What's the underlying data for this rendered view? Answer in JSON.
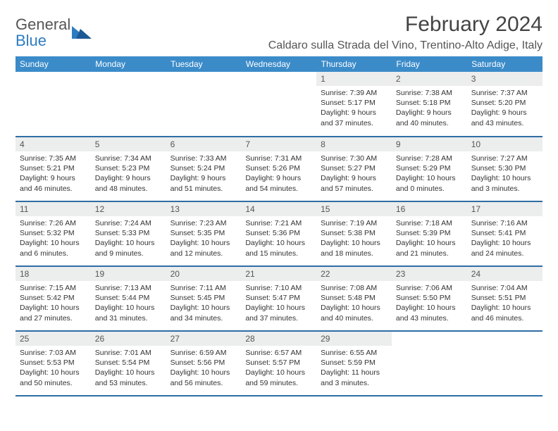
{
  "logo": {
    "text_general": "General",
    "text_blue": "Blue"
  },
  "title": "February 2024",
  "location": "Caldaro sulla Strada del Vino, Trentino-Alto Adige, Italy",
  "colors": {
    "header_bg": "#3b8bc9",
    "row_divider": "#2e6ea5",
    "daynum_bg": "#eceded",
    "text_muted": "#555",
    "logo_blue": "#2e7cc0"
  },
  "day_headers": [
    "Sunday",
    "Monday",
    "Tuesday",
    "Wednesday",
    "Thursday",
    "Friday",
    "Saturday"
  ],
  "weeks": [
    [
      null,
      null,
      null,
      null,
      {
        "n": "1",
        "sunrise": "7:39 AM",
        "sunset": "5:17 PM",
        "dl": "9 hours and 37 minutes."
      },
      {
        "n": "2",
        "sunrise": "7:38 AM",
        "sunset": "5:18 PM",
        "dl": "9 hours and 40 minutes."
      },
      {
        "n": "3",
        "sunrise": "7:37 AM",
        "sunset": "5:20 PM",
        "dl": "9 hours and 43 minutes."
      }
    ],
    [
      {
        "n": "4",
        "sunrise": "7:35 AM",
        "sunset": "5:21 PM",
        "dl": "9 hours and 46 minutes."
      },
      {
        "n": "5",
        "sunrise": "7:34 AM",
        "sunset": "5:23 PM",
        "dl": "9 hours and 48 minutes."
      },
      {
        "n": "6",
        "sunrise": "7:33 AM",
        "sunset": "5:24 PM",
        "dl": "9 hours and 51 minutes."
      },
      {
        "n": "7",
        "sunrise": "7:31 AM",
        "sunset": "5:26 PM",
        "dl": "9 hours and 54 minutes."
      },
      {
        "n": "8",
        "sunrise": "7:30 AM",
        "sunset": "5:27 PM",
        "dl": "9 hours and 57 minutes."
      },
      {
        "n": "9",
        "sunrise": "7:28 AM",
        "sunset": "5:29 PM",
        "dl": "10 hours and 0 minutes."
      },
      {
        "n": "10",
        "sunrise": "7:27 AM",
        "sunset": "5:30 PM",
        "dl": "10 hours and 3 minutes."
      }
    ],
    [
      {
        "n": "11",
        "sunrise": "7:26 AM",
        "sunset": "5:32 PM",
        "dl": "10 hours and 6 minutes."
      },
      {
        "n": "12",
        "sunrise": "7:24 AM",
        "sunset": "5:33 PM",
        "dl": "10 hours and 9 minutes."
      },
      {
        "n": "13",
        "sunrise": "7:23 AM",
        "sunset": "5:35 PM",
        "dl": "10 hours and 12 minutes."
      },
      {
        "n": "14",
        "sunrise": "7:21 AM",
        "sunset": "5:36 PM",
        "dl": "10 hours and 15 minutes."
      },
      {
        "n": "15",
        "sunrise": "7:19 AM",
        "sunset": "5:38 PM",
        "dl": "10 hours and 18 minutes."
      },
      {
        "n": "16",
        "sunrise": "7:18 AM",
        "sunset": "5:39 PM",
        "dl": "10 hours and 21 minutes."
      },
      {
        "n": "17",
        "sunrise": "7:16 AM",
        "sunset": "5:41 PM",
        "dl": "10 hours and 24 minutes."
      }
    ],
    [
      {
        "n": "18",
        "sunrise": "7:15 AM",
        "sunset": "5:42 PM",
        "dl": "10 hours and 27 minutes."
      },
      {
        "n": "19",
        "sunrise": "7:13 AM",
        "sunset": "5:44 PM",
        "dl": "10 hours and 31 minutes."
      },
      {
        "n": "20",
        "sunrise": "7:11 AM",
        "sunset": "5:45 PM",
        "dl": "10 hours and 34 minutes."
      },
      {
        "n": "21",
        "sunrise": "7:10 AM",
        "sunset": "5:47 PM",
        "dl": "10 hours and 37 minutes."
      },
      {
        "n": "22",
        "sunrise": "7:08 AM",
        "sunset": "5:48 PM",
        "dl": "10 hours and 40 minutes."
      },
      {
        "n": "23",
        "sunrise": "7:06 AM",
        "sunset": "5:50 PM",
        "dl": "10 hours and 43 minutes."
      },
      {
        "n": "24",
        "sunrise": "7:04 AM",
        "sunset": "5:51 PM",
        "dl": "10 hours and 46 minutes."
      }
    ],
    [
      {
        "n": "25",
        "sunrise": "7:03 AM",
        "sunset": "5:53 PM",
        "dl": "10 hours and 50 minutes."
      },
      {
        "n": "26",
        "sunrise": "7:01 AM",
        "sunset": "5:54 PM",
        "dl": "10 hours and 53 minutes."
      },
      {
        "n": "27",
        "sunrise": "6:59 AM",
        "sunset": "5:56 PM",
        "dl": "10 hours and 56 minutes."
      },
      {
        "n": "28",
        "sunrise": "6:57 AM",
        "sunset": "5:57 PM",
        "dl": "10 hours and 59 minutes."
      },
      {
        "n": "29",
        "sunrise": "6:55 AM",
        "sunset": "5:59 PM",
        "dl": "11 hours and 3 minutes."
      },
      null,
      null
    ]
  ],
  "labels": {
    "sunrise": "Sunrise:",
    "sunset": "Sunset:",
    "daylight": "Daylight:"
  }
}
